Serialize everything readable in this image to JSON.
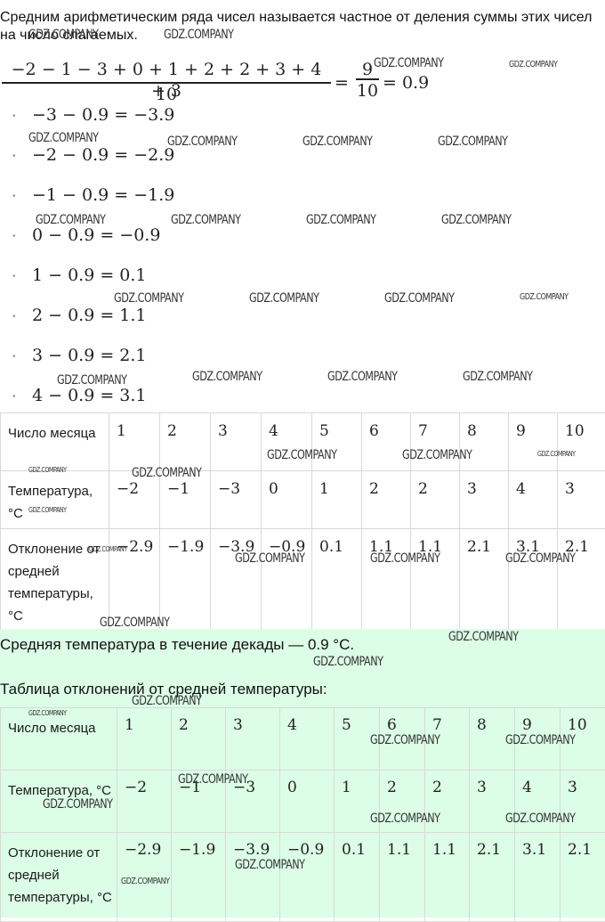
{
  "intro": "Средним арифметическим ряда чисел называется частное от деления суммы этих чисел на число слагаемых.",
  "mean_formula": {
    "numerator": "−2 − 1 − 3 + 0 + 1 + 2 + 2 + 3 + 4 + 3",
    "denominator": "10",
    "equals": "=",
    "fraction_numerator": "9",
    "fraction_denominator": "10",
    "result": "= 0.9"
  },
  "deviations": [
    "−3 − 0.9 = −3.9",
    "−2 − 0.9 = −2.9",
    "−1 − 0.9 = −1.9",
    "0 − 0.9 = −0.9",
    "1 − 0.9 = 0.1",
    "2 − 0.9 = 1.1",
    "3 − 0.9 = 2.1",
    "4 − 0.9 = 3.1"
  ],
  "bullet_char": "•",
  "table_labels": {
    "day": "Число месяца",
    "temperature": "Температура, °C",
    "deviation": "Отклонение от средней температуры, °C"
  },
  "days": [
    "1",
    "2",
    "3",
    "4",
    "5",
    "6",
    "7",
    "8",
    "9",
    "10"
  ],
  "temperatures": [
    "−2",
    "−1",
    "−3",
    "0",
    "1",
    "2",
    "2",
    "3",
    "4",
    "3"
  ],
  "deviation_values": [
    "−2.9",
    "−1.9",
    "−3.9",
    "−0.9",
    "0.1",
    "1.1",
    "1.1",
    "2.1",
    "3.1",
    "2.1"
  ],
  "average_text": "Средняя температура в течение декады — 0.9 °C.",
  "table_caption": "Таблица отклонений от средней температуры:",
  "watermark": "GDZ.COMPANY",
  "colors": {
    "answer_background": "#dcfde6",
    "table_border": "#d9d9d9"
  }
}
